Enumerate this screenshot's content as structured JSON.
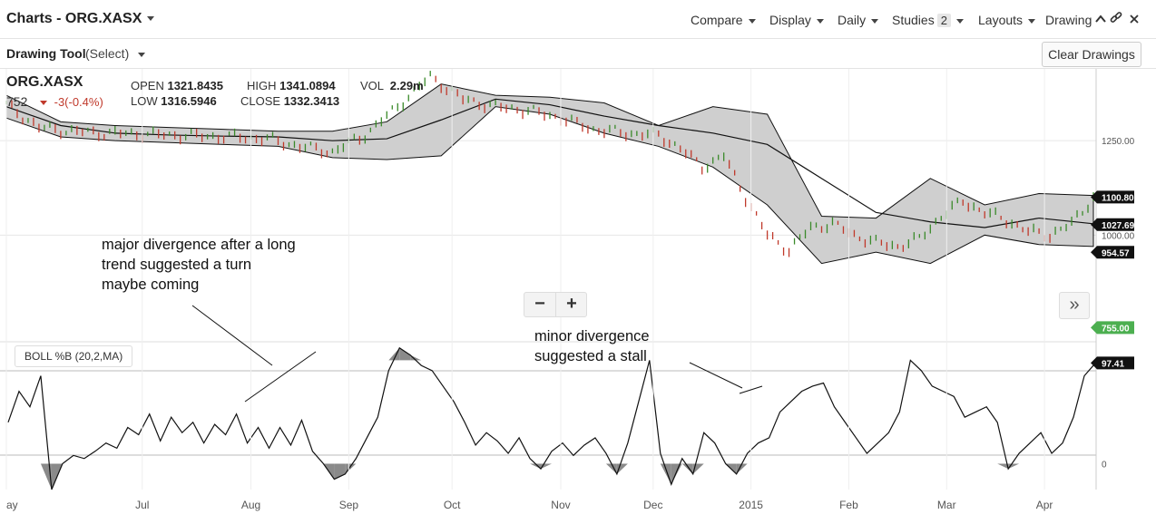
{
  "header": {
    "title": "Charts - ORG.XASX",
    "menus": [
      "Compare",
      "Display",
      "Daily",
      "Studies",
      "Layouts"
    ],
    "studies_count": "2",
    "drawing_label": "Drawing"
  },
  "toolbar": {
    "drawing_tool_label": "Drawing Tool",
    "drawing_tool_mode": "(Select)",
    "clear_drawings": "Clear Drawings"
  },
  "quote": {
    "symbol": "ORG.XASX",
    "last": "752",
    "change": "-3(-0.4%)",
    "open_label": "OPEN",
    "open": "1321.8435",
    "high_label": "HIGH",
    "high": "1341.0894",
    "vol_label": "VOL",
    "vol": "2.29m",
    "low_label": "LOW",
    "low": "1316.5946",
    "close_label": "CLOSE",
    "close": "1332.3413"
  },
  "study": {
    "label": "BOLL %B (20,2,MA)"
  },
  "annotations": {
    "major": [
      "major divergence after a long",
      "trend suggested a turn",
      "maybe coming"
    ],
    "minor": [
      "minor divergence",
      "suggested a stall"
    ]
  },
  "colors": {
    "up": "#3a8a2a",
    "down": "#c0392b",
    "band_fill": "#cfcfcf",
    "callout": "#4caf50"
  },
  "chart_data": [
    {
      "type": "line",
      "title": "",
      "x_ticks": [
        "ay",
        "Jul",
        "Aug",
        "Sep",
        "Oct",
        "Nov",
        "Dec",
        "2015",
        "Feb",
        "Mar",
        "Apr"
      ],
      "y_ticks": [
        1250,
        1000
      ],
      "ylim": [
        720,
        1440
      ],
      "price_labels": [
        "1250.00",
        "1000.00"
      ],
      "callouts": [
        {
          "label": "1100.80",
          "value": 1100.8,
          "color": "#111111"
        },
        {
          "label": "1027.69",
          "value": 1027.69,
          "color": "#111111"
        },
        {
          "label": "954.57",
          "value": 954.57,
          "color": "#111111"
        },
        {
          "label": "755.00",
          "value": 755,
          "color": "#4caf50"
        }
      ],
      "series": [
        {
          "name": "",
          "role": "middle",
          "x": [
            0,
            5,
            10,
            15,
            20,
            25,
            30,
            35,
            40,
            45,
            50,
            55,
            60,
            65,
            70,
            75,
            80,
            85,
            90,
            95,
            100
          ],
          "y": [
            1340,
            1290,
            1270,
            1265,
            1262,
            1260,
            1250,
            1255,
            1305,
            1360,
            1345,
            1315,
            1290,
            1270,
            1240,
            1150,
            1060,
            1035,
            1020,
            1045,
            1030
          ]
        },
        {
          "name": "",
          "role": "upper",
          "x": [
            0,
            5,
            10,
            15,
            20,
            25,
            30,
            35,
            40,
            45,
            50,
            55,
            60,
            65,
            70,
            75,
            80,
            85,
            90,
            95,
            100
          ],
          "y": [
            1370,
            1300,
            1290,
            1285,
            1280,
            1275,
            1275,
            1300,
            1400,
            1370,
            1365,
            1350,
            1290,
            1340,
            1320,
            1050,
            1045,
            1150,
            1080,
            1110,
            1105
          ]
        },
        {
          "name": "",
          "role": "lower",
          "x": [
            0,
            5,
            10,
            15,
            20,
            25,
            30,
            35,
            40,
            45,
            50,
            55,
            60,
            65,
            70,
            75,
            80,
            85,
            90,
            95,
            100
          ],
          "y": [
            1310,
            1260,
            1250,
            1245,
            1240,
            1235,
            1205,
            1200,
            1210,
            1340,
            1320,
            1270,
            1235,
            1180,
            1080,
            925,
            955,
            925,
            1000,
            975,
            970
          ]
        },
        {
          "name": "",
          "role": "close",
          "x": [
            0,
            3,
            6,
            9,
            12,
            15,
            18,
            21,
            24,
            27,
            30,
            33,
            36,
            39,
            42,
            45,
            48,
            51,
            54,
            57,
            60,
            62,
            64,
            66,
            68,
            70,
            72,
            74,
            76,
            78,
            80,
            82,
            84,
            86,
            88,
            90,
            92,
            94,
            96,
            98,
            100
          ],
          "y": [
            1345,
            1285,
            1275,
            1270,
            1268,
            1265,
            1262,
            1260,
            1255,
            1235,
            1220,
            1265,
            1340,
            1420,
            1360,
            1340,
            1330,
            1310,
            1280,
            1270,
            1265,
            1230,
            1180,
            1210,
            1100,
            1000,
            960,
            1020,
            1030,
            1000,
            980,
            970,
            990,
            1050,
            1090,
            1060,
            1040,
            1010,
            1000,
            1030,
            1100
          ]
        }
      ]
    },
    {
      "type": "line",
      "title": "BOLL %B (20,2,MA)",
      "ylim": [
        -25,
        110
      ],
      "y_ticks": [
        0
      ],
      "callouts": [
        {
          "label": "97.41",
          "value": 97.41
        }
      ],
      "series": [
        {
          "name": "",
          "role": "percent_b",
          "x": [
            0,
            1,
            2,
            3,
            4,
            5,
            6,
            7,
            8,
            9,
            10,
            11,
            12,
            13,
            14,
            15,
            16,
            17,
            18,
            19,
            20,
            21,
            22,
            23,
            24,
            25,
            26,
            27,
            28,
            29,
            30,
            31,
            32,
            33,
            34,
            35,
            36,
            37,
            38,
            39,
            40,
            41,
            42,
            43,
            44,
            45,
            46,
            47,
            48,
            49,
            50,
            51,
            52,
            53,
            54,
            55,
            56,
            57,
            58,
            59,
            60,
            61,
            62,
            63,
            64,
            65,
            66,
            67,
            68,
            69,
            70,
            71,
            72,
            73,
            74,
            75,
            76,
            77,
            78,
            79,
            80,
            81,
            82,
            83,
            84,
            85,
            86,
            87,
            88,
            89,
            90,
            91,
            92,
            93,
            94,
            95,
            96,
            97,
            98,
            99,
            100
          ],
          "y": [
            40,
            70,
            55,
            85,
            -25,
            0,
            8,
            5,
            12,
            20,
            15,
            35,
            28,
            48,
            22,
            45,
            30,
            40,
            20,
            38,
            28,
            48,
            20,
            35,
            15,
            35,
            18,
            42,
            12,
            0,
            -15,
            -10,
            5,
            25,
            45,
            90,
            112,
            105,
            95,
            90,
            75,
            60,
            40,
            18,
            30,
            22,
            10,
            25,
            5,
            -5,
            12,
            20,
            8,
            18,
            25,
            10,
            -10,
            20,
            60,
            100,
            10,
            -20,
            5,
            -10,
            30,
            20,
            0,
            -10,
            10,
            20,
            25,
            50,
            60,
            70,
            75,
            78,
            55,
            40,
            25,
            10,
            20,
            30,
            50,
            100,
            90,
            75,
            70,
            65,
            45,
            50,
            55,
            40,
            -5,
            10,
            20,
            30,
            10,
            20,
            45,
            85,
            97
          ]
        }
      ]
    }
  ]
}
